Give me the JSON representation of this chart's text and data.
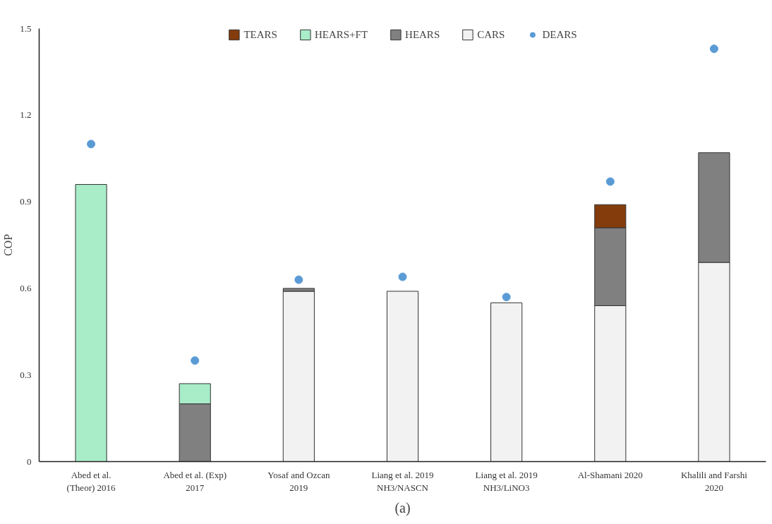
{
  "chart_data": {
    "type": "bar",
    "stacked": true,
    "ylabel": "COP",
    "categories": [
      "Abed et al.\n(Theor) 2016",
      "Abed et al. (Exp)\n2017",
      "Yosaf and Ozcan\n2019",
      "Liang et al. 2019\nNH3/NASCN",
      "Liang et al. 2019\nNH3/LiNO3",
      "Al-Shamani 2020",
      "Khalili and Farshi\n2020"
    ],
    "series": [
      {
        "name": "CARS",
        "color": "#f2f2f2",
        "values": [
          null,
          null,
          0.59,
          0.59,
          0.55,
          0.54,
          0.69
        ]
      },
      {
        "name": "HEARS",
        "color": "#808080",
        "values": [
          null,
          0.2,
          0.01,
          null,
          null,
          0.27,
          0.38
        ]
      },
      {
        "name": "HEARS+FT",
        "color": "#a8ecc8",
        "values": [
          0.96,
          0.07,
          null,
          null,
          null,
          null,
          null
        ]
      },
      {
        "name": "TEARS",
        "color": "#843c0c",
        "values": [
          null,
          null,
          null,
          null,
          null,
          0.08,
          null
        ]
      },
      {
        "name": "DEARS",
        "type": "scatter",
        "color": "#5b9bd5",
        "x": [
          "Abed et al.\n(Theor) 2016",
          "Abed et al. (Exp)\n2017",
          "Yosaf and Ozcan\n2019",
          "Liang et al. 2019\nNH3/NASCN",
          "Liang et al. 2019\nNH3/LiNO3",
          "Al-Shamani 2020",
          "Khalili and Farshi\n2020"
        ],
        "values": [
          1.1,
          0.35,
          0.63,
          0.64,
          0.57,
          0.97,
          1.43
        ]
      }
    ],
    "ylim": [
      0,
      1.5
    ],
    "yticks": [
      0,
      0.3,
      0.6,
      0.9,
      1.2,
      1.5
    ],
    "grid": false,
    "legend": "top",
    "marker": "circle",
    "annotations": [
      "(a)"
    ]
  }
}
